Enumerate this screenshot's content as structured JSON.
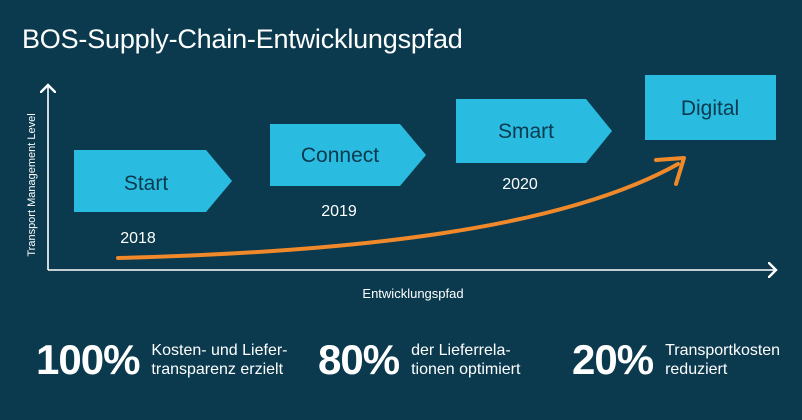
{
  "title": "BOS-Supply-Chain-Entwicklungspfad",
  "axes": {
    "y_label": "Transport Management Level",
    "x_label": "Entwicklungspfad"
  },
  "stages": [
    {
      "label": "Start",
      "year": "2018"
    },
    {
      "label": "Connect",
      "year": "2019"
    },
    {
      "label": "Smart",
      "year": "2020"
    },
    {
      "label": "Digital",
      "year": ""
    }
  ],
  "stats": [
    {
      "value": "100%",
      "line1": "Kosten- und Liefer-",
      "line2": "transparenz erzielt"
    },
    {
      "value": "80%",
      "line1": "der Lieferrela-",
      "line2": "tionen optimiert"
    },
    {
      "value": "20%",
      "line1": "Transportkosten",
      "line2": "reduziert"
    }
  ],
  "colors": {
    "background": "#0b3a4e",
    "box": "#29bce0",
    "arrow": "#f0892a",
    "text": "#ffffff",
    "box_text": "#0b3a4e"
  }
}
